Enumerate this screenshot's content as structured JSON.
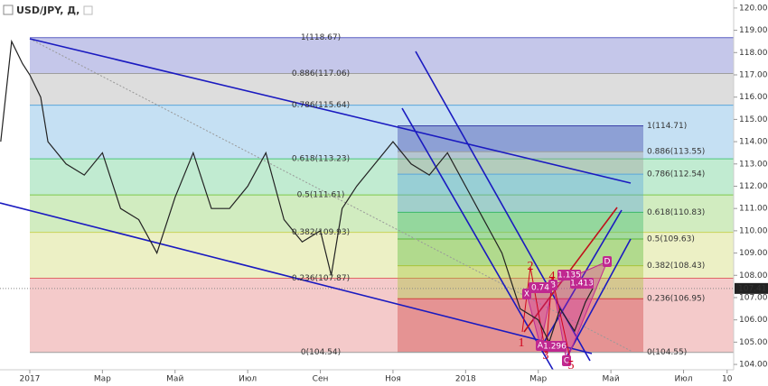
{
  "chart_data": {
    "type": "line",
    "title": "USD/JPY, Д,",
    "x": [
      -0.8,
      -0.5,
      -0.2,
      0,
      0.3,
      0.5,
      1,
      1.5,
      2,
      2.5,
      3,
      3.5,
      4,
      4.5,
      5,
      5.5,
      6,
      6.5,
      7,
      7.5,
      8,
      8.3,
      8.6,
      9,
      9.5,
      10,
      10.5,
      11,
      11.5,
      12,
      12.5,
      13,
      13.5,
      14,
      14.3,
      14.6,
      15,
      15.3,
      15.5
    ],
    "values": [
      114,
      118.5,
      117.5,
      117,
      116,
      114,
      113,
      112.5,
      113.5,
      111,
      110.5,
      109,
      111.5,
      113.5,
      111,
      111,
      112,
      113.5,
      110.5,
      109.5,
      110,
      108,
      111,
      112,
      113,
      114,
      113,
      112.5,
      113.5,
      112,
      110.5,
      109,
      106.5,
      106,
      105,
      106.5,
      105.5,
      106.8,
      107.41
    ],
    "color": "#222222",
    "xlim": [
      -0.82,
      19.38
    ],
    "xticks": [
      {
        "value": 0,
        "label": "2017"
      },
      {
        "value": 2,
        "label": "Мар"
      },
      {
        "value": 4,
        "label": "Май"
      },
      {
        "value": 6,
        "label": "Июл"
      },
      {
        "value": 8,
        "label": "Сен"
      },
      {
        "value": 10,
        "label": "Ноя"
      },
      {
        "value": 12,
        "label": "2018"
      },
      {
        "value": 14,
        "label": "Мар"
      },
      {
        "value": 16,
        "label": "Май"
      },
      {
        "value": 18,
        "label": "Июл"
      },
      {
        "value": 19.2,
        "label": "10"
      }
    ],
    "ylim": [
      103.76,
      120.36
    ],
    "yticks": [
      {
        "value": 104,
        "label": "104.00"
      },
      {
        "value": 105,
        "label": "105.00"
      },
      {
        "value": 106,
        "label": "106.00"
      },
      {
        "value": 107,
        "label": "107.00"
      },
      {
        "value": 108,
        "label": "108.00"
      },
      {
        "value": 109,
        "label": "109.00"
      },
      {
        "value": 110,
        "label": "110.00"
      },
      {
        "value": 111,
        "label": "111.00"
      },
      {
        "value": 112,
        "label": "112.00"
      },
      {
        "value": 113,
        "label": "113.00"
      },
      {
        "value": 114,
        "label": "114.00"
      },
      {
        "value": 115,
        "label": "115.00"
      },
      {
        "value": 116,
        "label": "116.00"
      },
      {
        "value": 117,
        "label": "117.00"
      },
      {
        "value": 118,
        "label": "118.00"
      },
      {
        "value": 119,
        "label": "119.00"
      },
      {
        "value": 120,
        "label": "120.00"
      }
    ],
    "last_price": {
      "value": 107.41,
      "label": "107.41"
    },
    "fib": [
      {
        "levels": [
          {
            "value": 118.67,
            "label": "1(118.67)",
            "color": "#5a5fc4"
          },
          {
            "value": 117.06,
            "label": "0.886(117.06)",
            "color": "#9e9e9e"
          },
          {
            "value": 115.64,
            "label": "0.786(115.64)",
            "color": "#5aa6dc"
          },
          {
            "value": 113.23,
            "label": "0.618(113.23)",
            "color": "#4cc77a"
          },
          {
            "value": 111.61,
            "label": "0.5(111.61)",
            "color": "#7cc84a"
          },
          {
            "value": 109.93,
            "label": "0.382(109.93)",
            "color": "#c9d45a"
          },
          {
            "value": 107.87,
            "label": "0.236(107.87)",
            "color": "#e06666"
          },
          {
            "value": 104.54,
            "label": "0(104.54)",
            "color": "#9e9e9e"
          }
        ]
      },
      {
        "levels": [
          {
            "value": 114.71,
            "label": "1(114.71)",
            "color": "#3a40a8"
          },
          {
            "value": 113.55,
            "label": "0.886(113.55)",
            "color": "#9e9e9e"
          },
          {
            "value": 112.54,
            "label": "0.786(112.54)",
            "color": "#5aa6dc"
          },
          {
            "value": 110.83,
            "label": "0.618(110.83)",
            "color": "#3ab86a"
          },
          {
            "value": 109.63,
            "label": "0.5(109.63)",
            "color": "#5ab83a"
          },
          {
            "value": 108.43,
            "label": "0.382(108.43)",
            "color": "#a8c43a"
          },
          {
            "value": 106.95,
            "label": "0.236(106.95)",
            "color": "#d04040"
          },
          {
            "value": 104.55,
            "label": "0(104.55)",
            "color": "#9e9e9e"
          }
        ]
      }
    ],
    "pattern_points": [
      "X",
      "A",
      "B",
      "C",
      "D"
    ],
    "ratios": [
      0.74,
      1.135,
      1.413,
      1.296
    ],
    "waves": [
      1,
      2,
      3,
      4,
      5
    ]
  }
}
